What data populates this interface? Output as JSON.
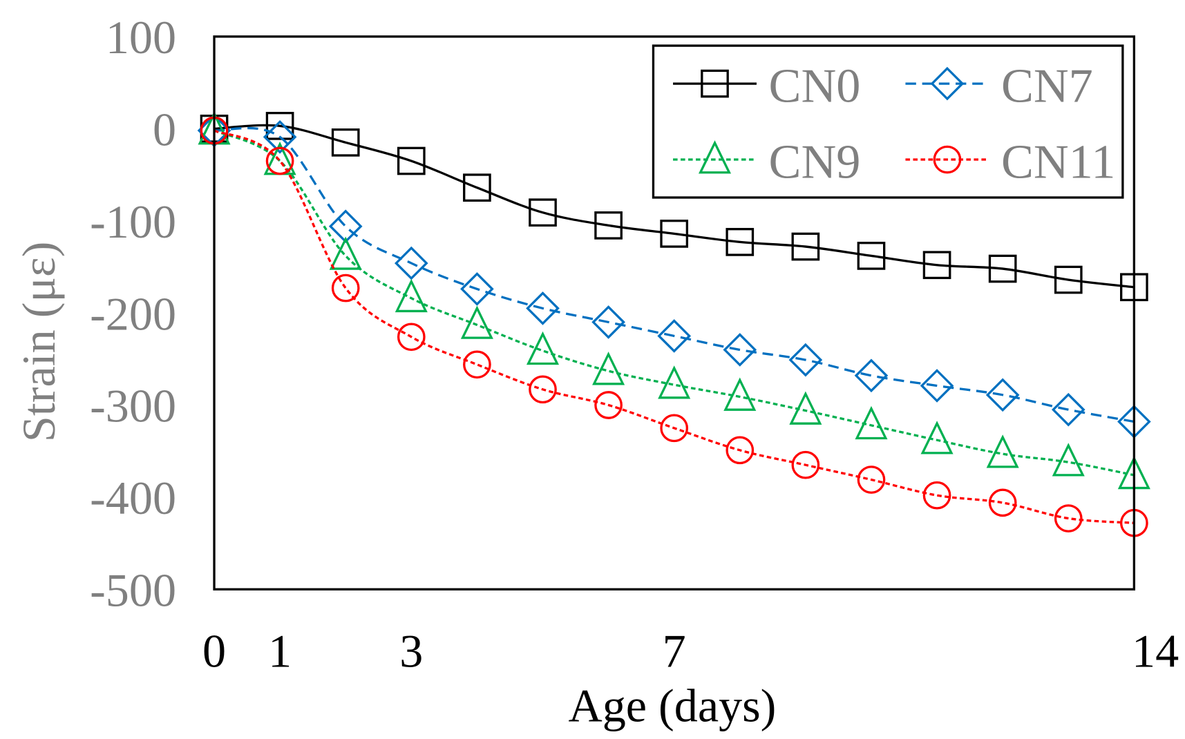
{
  "chart_data": {
    "type": "line",
    "title": "",
    "xlabel": "Age (days)",
    "ylabel": "Strain (με)",
    "xlim": [
      0,
      14
    ],
    "ylim": [
      -500,
      100
    ],
    "x_ticks": [
      {
        "value": 0,
        "label": "0"
      },
      {
        "value": 1,
        "label": "1"
      },
      {
        "value": 3,
        "label": "3"
      },
      {
        "value": 7,
        "label": "7"
      },
      {
        "value": 14,
        "label": "14"
      }
    ],
    "y_ticks": [
      {
        "value": 100,
        "label": "100"
      },
      {
        "value": 0,
        "label": "0"
      },
      {
        "value": -100,
        "label": "-100"
      },
      {
        "value": -200,
        "label": "-200"
      },
      {
        "value": -300,
        "label": "-300"
      },
      {
        "value": -400,
        "label": "-400"
      },
      {
        "value": -500,
        "label": "-500"
      }
    ],
    "grid": false,
    "legend_position": "top-right",
    "x": [
      0,
      1,
      2,
      3,
      4,
      5,
      6,
      7,
      8,
      9,
      10,
      11,
      12,
      13,
      14
    ],
    "series": [
      {
        "name": "CN0",
        "color": "#000000",
        "marker": "square",
        "dash": "solid",
        "values": [
          0,
          3,
          -15,
          -35,
          -64,
          -91,
          -105,
          -114,
          -123,
          -128,
          -138,
          -148,
          -152,
          -164,
          -172
        ]
      },
      {
        "name": "CN7",
        "color": "#0070C0",
        "marker": "diamond",
        "dash": "dashed",
        "values": [
          -2,
          -9,
          -106,
          -146,
          -174,
          -195,
          -210,
          -225,
          -240,
          -251,
          -268,
          -279,
          -289,
          -305,
          -318
        ]
      },
      {
        "name": "CN9",
        "color": "#00B050",
        "marker": "triangle",
        "dash": "dotted",
        "values": [
          -2,
          -35,
          -138,
          -184,
          -213,
          -241,
          -263,
          -278,
          -291,
          -306,
          -322,
          -338,
          -353,
          -362,
          -376
        ]
      },
      {
        "name": "CN11",
        "color": "#FF0000",
        "marker": "circle",
        "dash": "dotted",
        "values": [
          -2,
          -35,
          -173,
          -226,
          -256,
          -283,
          -300,
          -325,
          -349,
          -365,
          -381,
          -398,
          -406,
          -423,
          -428
        ]
      }
    ]
  }
}
